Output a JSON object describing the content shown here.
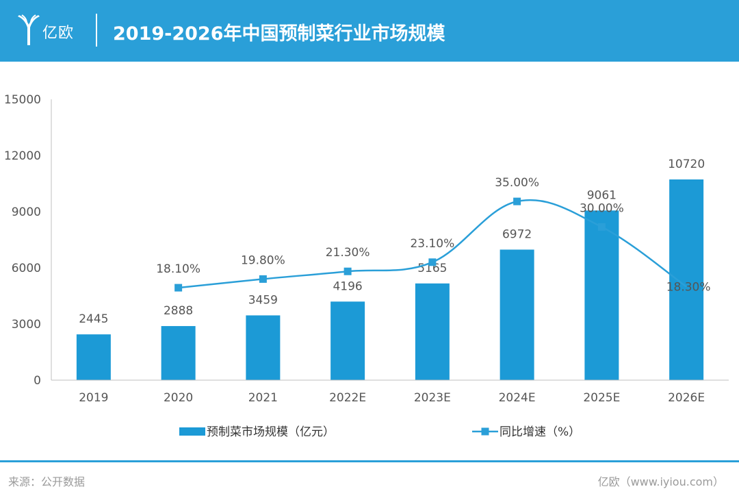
{
  "header": {
    "logo_text": "亿欧",
    "title": "2019-2026年中国预制菜行业市场规模"
  },
  "colors": {
    "accent": "#2a9fd8",
    "bar": "#1c9ad6",
    "line": "#2a9fd8",
    "axis_text": "#555555",
    "label_text": "#555555",
    "footer_text": "#9a9a9a"
  },
  "chart_data": {
    "type": "bar",
    "title": "2019-2026年中国预制菜行业市场规模",
    "categories": [
      "2019",
      "2020",
      "2021",
      "2022E",
      "2023E",
      "2024E",
      "2025E",
      "2026E"
    ],
    "ylim": [
      0,
      15000
    ],
    "yticks": [
      0,
      3000,
      6000,
      9000,
      12000,
      15000
    ],
    "series": [
      {
        "name": "预制菜市场规模（亿元）",
        "type": "bar",
        "axis": "left",
        "values": [
          2445,
          2888,
          3459,
          4196,
          5165,
          6972,
          9061,
          10720
        ],
        "labels": [
          "2445",
          "2888",
          "3459",
          "4196",
          "5165",
          "6972",
          "9061",
          "10720"
        ]
      },
      {
        "name": "同比增速（%）",
        "type": "line",
        "axis": "right",
        "unit": "%",
        "ylim": [
          0,
          55
        ],
        "values": [
          null,
          18.1,
          19.8,
          21.3,
          23.1,
          35.0,
          30.0,
          18.3
        ],
        "labels": [
          "",
          "18.10%",
          "19.80%",
          "21.30%",
          "23.10%",
          "35.00%",
          "30.00%",
          "18.30%"
        ]
      }
    ],
    "legend": {
      "position": "bottom",
      "bar_label": "预制菜市场规模（亿元）",
      "line_label": "同比增速（%）"
    }
  },
  "footer": {
    "source": "来源：公开数据",
    "credit": "亿欧（www.iyiou.com）"
  }
}
